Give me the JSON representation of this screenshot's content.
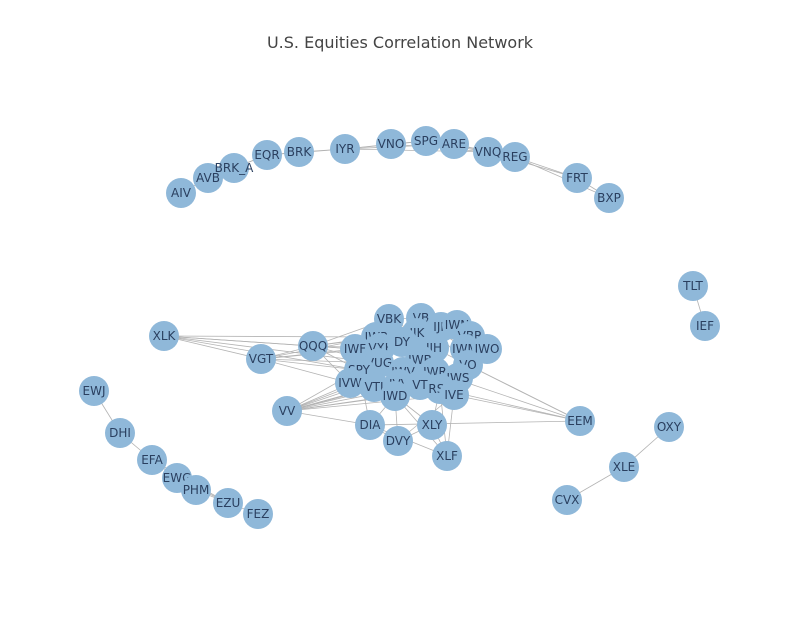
{
  "chart_data": {
    "type": "network",
    "title": "U.S. Equities Correlation Network",
    "node_color": "#8fb8d9",
    "edge_color": "#b3b3b3",
    "nodes": [
      {
        "id": "AIV"
      },
      {
        "id": "AVB"
      },
      {
        "id": "BRK_A"
      },
      {
        "id": "EQR"
      },
      {
        "id": "BRK"
      },
      {
        "id": "IYR"
      },
      {
        "id": "VNO"
      },
      {
        "id": "SPG"
      },
      {
        "id": "ARE"
      },
      {
        "id": "VNQ"
      },
      {
        "id": "REG"
      },
      {
        "id": "FRT"
      },
      {
        "id": "BXP"
      },
      {
        "id": "TLT"
      },
      {
        "id": "IEF"
      },
      {
        "id": "OXY"
      },
      {
        "id": "XLE"
      },
      {
        "id": "CVX"
      },
      {
        "id": "EWJ"
      },
      {
        "id": "DHI"
      },
      {
        "id": "EFA"
      },
      {
        "id": "EWG"
      },
      {
        "id": "PHM"
      },
      {
        "id": "EZU"
      },
      {
        "id": "FEZ"
      },
      {
        "id": "XLK"
      },
      {
        "id": "VGT"
      },
      {
        "id": "QQQ"
      },
      {
        "id": "VV"
      },
      {
        "id": "EEM"
      },
      {
        "id": "VBK"
      },
      {
        "id": "VB"
      },
      {
        "id": "IJR"
      },
      {
        "id": "IWN"
      },
      {
        "id": "IWP"
      },
      {
        "id": "IJK"
      },
      {
        "id": "VBR"
      },
      {
        "id": "IWF"
      },
      {
        "id": "VXF"
      },
      {
        "id": "DY"
      },
      {
        "id": "IJH"
      },
      {
        "id": "IWM"
      },
      {
        "id": "IWO"
      },
      {
        "id": "VUG"
      },
      {
        "id": "IWB"
      },
      {
        "id": "VO"
      },
      {
        "id": "SPY"
      },
      {
        "id": "IWV"
      },
      {
        "id": "IWR"
      },
      {
        "id": "IWS"
      },
      {
        "id": "IVW"
      },
      {
        "id": "VTI"
      },
      {
        "id": "IVV"
      },
      {
        "id": "VT"
      },
      {
        "id": "RSP"
      },
      {
        "id": "IWD"
      },
      {
        "id": "IVE"
      },
      {
        "id": "DIA"
      },
      {
        "id": "XLY"
      },
      {
        "id": "DVY"
      },
      {
        "id": "XLF"
      }
    ],
    "edges": [
      [
        "AIV",
        "AVB"
      ],
      [
        "AVB",
        "BRK_A"
      ],
      [
        "BRK_A",
        "EQR"
      ],
      [
        "EQR",
        "BRK"
      ],
      [
        "BRK",
        "IYR"
      ],
      [
        "EQR",
        "IYR"
      ],
      [
        "IYR",
        "VNO"
      ],
      [
        "IYR",
        "SPG"
      ],
      [
        "IYR",
        "ARE"
      ],
      [
        "VNO",
        "SPG"
      ],
      [
        "SPG",
        "ARE"
      ],
      [
        "ARE",
        "VNQ"
      ],
      [
        "VNO",
        "VNQ"
      ],
      [
        "VNQ",
        "REG"
      ],
      [
        "SPG",
        "REG"
      ],
      [
        "ARE",
        "REG"
      ],
      [
        "REG",
        "FRT"
      ],
      [
        "VNQ",
        "FRT"
      ],
      [
        "FRT",
        "BXP"
      ],
      [
        "REG",
        "BXP"
      ],
      [
        "IYR",
        "VNQ"
      ],
      [
        "AVB",
        "EQR"
      ],
      [
        "TLT",
        "IEF"
      ],
      [
        "OXY",
        "XLE"
      ],
      [
        "XLE",
        "CVX"
      ],
      [
        "EWJ",
        "DHI"
      ],
      [
        "DHI",
        "EFA"
      ],
      [
        "EFA",
        "EWG"
      ],
      [
        "EWG",
        "PHM"
      ],
      [
        "PHM",
        "EZU"
      ],
      [
        "EZU",
        "FEZ"
      ],
      [
        "EFA",
        "EZU"
      ],
      [
        "EWG",
        "EZU"
      ],
      [
        "XLK",
        "QQQ"
      ],
      [
        "XLK",
        "IWF"
      ],
      [
        "XLK",
        "VUG"
      ],
      [
        "XLK",
        "SPY"
      ],
      [
        "XLK",
        "VGT"
      ],
      [
        "XLK",
        "IWP"
      ],
      [
        "VGT",
        "QQQ"
      ],
      [
        "VGT",
        "IWF"
      ],
      [
        "VGT",
        "VUG"
      ],
      [
        "VGT",
        "IWP"
      ],
      [
        "VGT",
        "SPY"
      ],
      [
        "VGT",
        "IVW"
      ],
      [
        "VGT",
        "VXF"
      ],
      [
        "QQQ",
        "IWF"
      ],
      [
        "QQQ",
        "VUG"
      ],
      [
        "QQQ",
        "IWP"
      ],
      [
        "QQQ",
        "SPY"
      ],
      [
        "QQQ",
        "IVW"
      ],
      [
        "QQQ",
        "VBK"
      ],
      [
        "QQQ",
        "IJK"
      ],
      [
        "QQQ",
        "VXF"
      ],
      [
        "VV",
        "SPY"
      ],
      [
        "VV",
        "IVV"
      ],
      [
        "VV",
        "VTI"
      ],
      [
        "VV",
        "IWB"
      ],
      [
        "VV",
        "IWV"
      ],
      [
        "VV",
        "DIA"
      ],
      [
        "VV",
        "IWD"
      ],
      [
        "VV",
        "VT"
      ],
      [
        "VV",
        "RSP"
      ],
      [
        "VV",
        "IVE"
      ],
      [
        "VV",
        "IJH"
      ],
      [
        "VV",
        "IWR"
      ],
      [
        "EEM",
        "IWR"
      ],
      [
        "EEM",
        "IJH"
      ],
      [
        "EEM",
        "VO"
      ],
      [
        "EEM",
        "IVE"
      ],
      [
        "EEM",
        "RSP"
      ],
      [
        "EEM",
        "DIA"
      ],
      [
        "VBK",
        "VB"
      ],
      [
        "VBK",
        "IJK"
      ],
      [
        "VB",
        "IJR"
      ],
      [
        "VB",
        "IWM"
      ],
      [
        "IJR",
        "IWN"
      ],
      [
        "IWN",
        "VBR"
      ],
      [
        "IWN",
        "IWM"
      ],
      [
        "VBR",
        "IWM"
      ],
      [
        "IWM",
        "IWO"
      ],
      [
        "IJK",
        "DY"
      ],
      [
        "IWP",
        "IWF"
      ],
      [
        "IWF",
        "VXF"
      ],
      [
        "VXF",
        "DY"
      ],
      [
        "DY",
        "IJH"
      ],
      [
        "IJH",
        "IWB"
      ],
      [
        "IWB",
        "VUG"
      ],
      [
        "VUG",
        "SPY"
      ],
      [
        "SPY",
        "IWV"
      ],
      [
        "IWV",
        "IWR"
      ],
      [
        "IWR",
        "IWS"
      ],
      [
        "IWS",
        "VO"
      ],
      [
        "VO",
        "IWO"
      ],
      [
        "IVW",
        "VTI"
      ],
      [
        "VTI",
        "IVV"
      ],
      [
        "IVV",
        "VT"
      ],
      [
        "VT",
        "RSP"
      ],
      [
        "RSP",
        "IVE"
      ],
      [
        "IWD",
        "IVV"
      ],
      [
        "IWD",
        "VT"
      ],
      [
        "IWD",
        "DIA"
      ],
      [
        "DIA",
        "DVY"
      ],
      [
        "DVY",
        "XLY"
      ],
      [
        "XLY",
        "XLF"
      ],
      [
        "XLF",
        "IVE"
      ],
      [
        "XLF",
        "IWD"
      ],
      [
        "XLF",
        "RSP"
      ],
      [
        "XLF",
        "DIA"
      ],
      [
        "XLY",
        "RSP"
      ],
      [
        "XLY",
        "IWD"
      ],
      [
        "DVY",
        "IWD"
      ],
      [
        "DVY",
        "IVE"
      ],
      [
        "DIA",
        "SPY"
      ],
      [
        "IJR",
        "IJH"
      ],
      [
        "IJH",
        "IWR"
      ],
      [
        "VB",
        "VO"
      ],
      [
        "IWB",
        "IWV"
      ],
      [
        "SPY",
        "IVV"
      ],
      [
        "IVW",
        "SPY"
      ],
      [
        "VTI",
        "IWV"
      ],
      [
        "IWS",
        "IVE"
      ],
      [
        "RSP",
        "IWR"
      ],
      [
        "IWD",
        "IWS"
      ],
      [
        "VUG",
        "IWF"
      ],
      [
        "VXF",
        "IWV"
      ],
      [
        "IJK",
        "IJH"
      ],
      [
        "VBR",
        "IWS"
      ]
    ]
  }
}
